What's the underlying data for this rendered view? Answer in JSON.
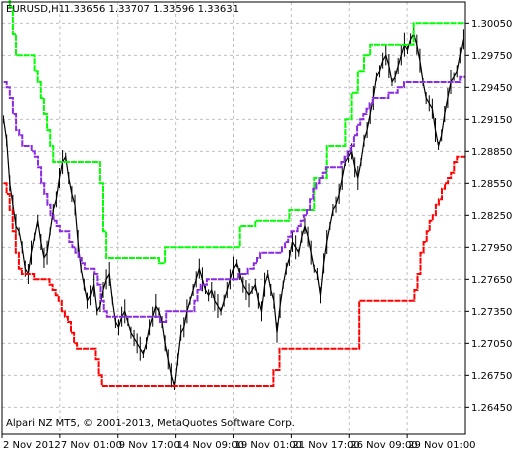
{
  "header": {
    "symbol_label": "EURUSD,H1",
    "ohlc_label": "1.33656 1.33707 1.33596 1.33631"
  },
  "footer": {
    "copyright": "Alpari NZ MT5, © 2001-2013, MetaQuotes Software Corp."
  },
  "chart_data": {
    "type": "line",
    "symbol": "EURUSD",
    "timeframe": "H1",
    "ylim": [
      1.262,
      1.3025
    ],
    "y_ticks": [
      "1.30050",
      "1.29750",
      "1.29450",
      "1.29150",
      "1.28850",
      "1.28550",
      "1.28250",
      "1.27950",
      "1.27650",
      "1.27350",
      "1.27050",
      "1.26750",
      "1.26450"
    ],
    "x_ticks": [
      "2 Nov 2012",
      "7 Nov 01:00",
      "9 Nov 17:00",
      "14 Nov 09:00",
      "19 Nov 01:00",
      "21 Nov 17:00",
      "26 Nov 09:00",
      "29 Nov 01:00"
    ],
    "grid": true,
    "colors": {
      "price": "#000000",
      "upper_band": "#00ff00",
      "middle_line": "#8a2be2",
      "lower_band": "#ff0000",
      "grid": "#c0c0c0",
      "axis": "#000000"
    },
    "series": [
      {
        "id": "price",
        "style": "bars",
        "values": [
          1.2915,
          1.2895,
          1.2855,
          1.2835,
          1.2815,
          1.281,
          1.2795,
          1.2775,
          1.277,
          1.279,
          1.2805,
          1.282,
          1.28,
          1.2785,
          1.279,
          1.281,
          1.283,
          1.284,
          1.286,
          1.2875,
          1.288,
          1.286,
          1.2845,
          1.2835,
          1.28,
          1.2775,
          1.276,
          1.2745,
          1.275,
          1.276,
          1.2735,
          1.274,
          1.2755,
          1.2765,
          1.277,
          1.2745,
          1.2725,
          1.272,
          1.273,
          1.2735,
          1.2725,
          1.2715,
          1.271,
          1.2705,
          1.27,
          1.2695,
          1.2705,
          1.272,
          1.273,
          1.274,
          1.2735,
          1.2725,
          1.2705,
          1.269,
          1.2675,
          1.2665,
          1.269,
          1.2715,
          1.272,
          1.2735,
          1.2745,
          1.2755,
          1.2765,
          1.2775,
          1.2765,
          1.2755,
          1.275,
          1.2755,
          1.2745,
          1.274,
          1.2735,
          1.2745,
          1.2755,
          1.2765,
          1.2775,
          1.278,
          1.277,
          1.276,
          1.2755,
          1.275,
          1.2755,
          1.276,
          1.2745,
          1.2735,
          1.276,
          1.277,
          1.2755,
          1.2745,
          1.2715,
          1.274,
          1.276,
          1.2775,
          1.2785,
          1.28,
          1.2795,
          1.279,
          1.2805,
          1.2815,
          1.2805,
          1.279,
          1.2775,
          1.277,
          1.275,
          1.278,
          1.28,
          1.2815,
          1.283,
          1.2835,
          1.2845,
          1.286,
          1.2875,
          1.288,
          1.2885,
          1.287,
          1.286,
          1.2875,
          1.2895,
          1.2905,
          1.292,
          1.2935,
          1.2955,
          1.296,
          1.297,
          1.2975,
          1.2965,
          1.295,
          1.2955,
          1.2965,
          1.2975,
          1.2985,
          1.298,
          1.299,
          1.2995,
          1.2985,
          1.297,
          1.295,
          1.2935,
          1.293,
          1.2925,
          1.2905,
          1.289,
          1.29,
          1.292,
          1.2935,
          1.295,
          1.2955,
          1.296,
          1.2975,
          1.299
        ]
      },
      {
        "id": "upper_band",
        "style": "step",
        "values": [
          1.3035,
          1.3035,
          1.302,
          1.2995,
          1.2975,
          1.2975,
          1.2975,
          1.2975,
          1.2975,
          1.2975,
          1.296,
          1.295,
          1.2935,
          1.292,
          1.2905,
          1.289,
          1.2875,
          1.2875,
          1.2875,
          1.2875,
          1.2875,
          1.2875,
          1.2875,
          1.2875,
          1.2875,
          1.2875,
          1.2875,
          1.2875,
          1.2875,
          1.2875,
          1.2875,
          1.2855,
          1.281,
          1.2785,
          1.2785,
          1.2785,
          1.2785,
          1.2785,
          1.2785,
          1.2785,
          1.2785,
          1.2785,
          1.2785,
          1.2785,
          1.2785,
          1.2785,
          1.2785,
          1.2785,
          1.2785,
          1.2785,
          1.278,
          1.278,
          1.2795,
          1.2795,
          1.2795,
          1.2795,
          1.2795,
          1.2795,
          1.2795,
          1.2795,
          1.2795,
          1.2795,
          1.2795,
          1.2795,
          1.2795,
          1.2795,
          1.2795,
          1.2795,
          1.2795,
          1.2795,
          1.2795,
          1.2795,
          1.2795,
          1.2795,
          1.2795,
          1.2795,
          1.2815,
          1.2815,
          1.2815,
          1.2815,
          1.2815,
          1.282,
          1.282,
          1.282,
          1.282,
          1.282,
          1.282,
          1.282,
          1.282,
          1.282,
          1.282,
          1.282,
          1.283,
          1.283,
          1.283,
          1.283,
          1.283,
          1.283,
          1.283,
          1.283,
          1.286,
          1.286,
          1.286,
          1.286,
          1.289,
          1.289,
          1.289,
          1.289,
          1.289,
          1.289,
          1.2915,
          1.2915,
          1.294,
          1.294,
          1.296,
          1.296,
          1.2975,
          1.2975,
          1.2985,
          1.2985,
          1.2985,
          1.2985,
          1.2985,
          1.2985,
          1.2985,
          1.2985,
          1.2985,
          1.2985,
          1.2985,
          1.2985,
          1.2985,
          1.2985,
          1.3005,
          1.3005,
          1.3005,
          1.3005,
          1.3005,
          1.3005,
          1.3005,
          1.3005,
          1.3005,
          1.3005,
          1.3005,
          1.3005,
          1.3005,
          1.3005,
          1.3005,
          1.3005,
          1.3005
        ]
      },
      {
        "id": "middle_line",
        "style": "step",
        "values": [
          1.295,
          1.2945,
          1.2935,
          1.292,
          1.2905,
          1.29,
          1.289,
          1.289,
          1.289,
          1.2885,
          1.288,
          1.287,
          1.2855,
          1.2845,
          1.2835,
          1.2825,
          1.282,
          1.2815,
          1.281,
          1.281,
          1.281,
          1.28,
          1.2795,
          1.279,
          1.2785,
          1.278,
          1.2775,
          1.2775,
          1.2775,
          1.277,
          1.276,
          1.2745,
          1.2735,
          1.273,
          1.273,
          1.273,
          1.273,
          1.273,
          1.273,
          1.273,
          1.273,
          1.273,
          1.273,
          1.273,
          1.273,
          1.273,
          1.273,
          1.273,
          1.273,
          1.273,
          1.2725,
          1.2725,
          1.2735,
          1.2735,
          1.2735,
          1.2735,
          1.2735,
          1.2735,
          1.2735,
          1.2735,
          1.2735,
          1.2745,
          1.2755,
          1.276,
          1.276,
          1.2765,
          1.2765,
          1.2765,
          1.2765,
          1.2765,
          1.2765,
          1.2765,
          1.2765,
          1.2765,
          1.2765,
          1.277,
          1.277,
          1.277,
          1.2775,
          1.2775,
          1.278,
          1.2785,
          1.279,
          1.279,
          1.279,
          1.279,
          1.279,
          1.279,
          1.279,
          1.2795,
          1.28,
          1.2805,
          1.281,
          1.281,
          1.2815,
          1.282,
          1.2825,
          1.283,
          1.284,
          1.285,
          1.2855,
          1.286,
          1.2865,
          1.287,
          1.287,
          1.287,
          1.287,
          1.287,
          1.2875,
          1.288,
          1.2885,
          1.289,
          1.29,
          1.291,
          1.2915,
          1.292,
          1.2925,
          1.293,
          1.2935,
          1.2935,
          1.2935,
          1.2935,
          1.2935,
          1.294,
          1.294,
          1.294,
          1.2945,
          1.2945,
          1.295,
          1.295,
          1.295,
          1.295,
          1.295,
          1.295,
          1.295,
          1.295,
          1.295,
          1.295,
          1.295,
          1.295,
          1.295,
          1.295,
          1.295,
          1.295,
          1.295,
          1.295,
          1.2955,
          1.2955
        ]
      },
      {
        "id": "lower_band",
        "style": "step",
        "values": [
          1.2855,
          1.2845,
          1.283,
          1.281,
          1.279,
          1.2775,
          1.277,
          1.277,
          1.277,
          1.277,
          1.2765,
          1.2765,
          1.2765,
          1.2765,
          1.2765,
          1.276,
          1.2755,
          1.275,
          1.2745,
          1.2735,
          1.273,
          1.2725,
          1.2715,
          1.2705,
          1.27,
          1.27,
          1.27,
          1.27,
          1.27,
          1.27,
          1.269,
          1.2675,
          1.2665,
          1.2665,
          1.2665,
          1.2665,
          1.2665,
          1.2665,
          1.2665,
          1.2665,
          1.2665,
          1.2665,
          1.2665,
          1.2665,
          1.2665,
          1.2665,
          1.2665,
          1.2665,
          1.2665,
          1.2665,
          1.2665,
          1.2665,
          1.2665,
          1.2665,
          1.2665,
          1.2665,
          1.2665,
          1.2665,
          1.2665,
          1.2665,
          1.2665,
          1.2665,
          1.2665,
          1.2665,
          1.2665,
          1.2665,
          1.2665,
          1.2665,
          1.2665,
          1.2665,
          1.2665,
          1.2665,
          1.2665,
          1.2665,
          1.2665,
          1.2665,
          1.2665,
          1.2665,
          1.2665,
          1.2665,
          1.2665,
          1.2665,
          1.2665,
          1.2665,
          1.2665,
          1.2665,
          1.2665,
          1.2665,
          1.268,
          1.268,
          1.27,
          1.27,
          1.27,
          1.27,
          1.27,
          1.27,
          1.27,
          1.27,
          1.27,
          1.27,
          1.27,
          1.27,
          1.27,
          1.27,
          1.27,
          1.27,
          1.27,
          1.27,
          1.27,
          1.27,
          1.27,
          1.27,
          1.27,
          1.27,
          1.27,
          1.27,
          1.2745,
          1.2745,
          1.2745,
          1.2745,
          1.2745,
          1.2745,
          1.2745,
          1.2745,
          1.2745,
          1.2745,
          1.2745,
          1.2745,
          1.2745,
          1.2745,
          1.2745,
          1.2745,
          1.2745,
          1.2745,
          1.2755,
          1.277,
          1.279,
          1.28,
          1.281,
          1.282,
          1.2825,
          1.2835,
          1.284,
          1.285,
          1.2855,
          1.286,
          1.2865,
          1.2875,
          1.288,
          1.288,
          1.288
        ]
      }
    ]
  }
}
